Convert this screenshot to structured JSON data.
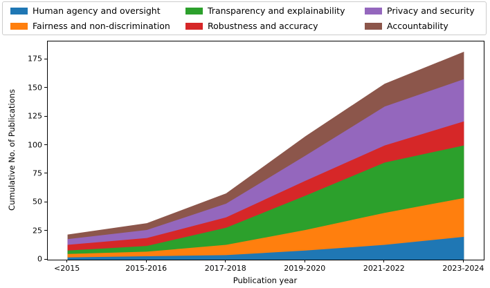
{
  "chart_data": {
    "type": "area",
    "stacked": true,
    "title": "",
    "xlabel": "Publication year",
    "ylabel": "Cumulative No. of Publications",
    "categories": [
      "<2015",
      "2015-2016",
      "2017-2018",
      "2019-2020",
      "2021-2022",
      "2023-2024"
    ],
    "series": [
      {
        "name": "Human agency and oversight",
        "color": "#1f77b4",
        "values": [
          2,
          3,
          4,
          8,
          13,
          20
        ]
      },
      {
        "name": "Fairness and non-discrimination",
        "color": "#ff7f0e",
        "values": [
          3,
          4,
          9,
          18,
          28,
          34
        ]
      },
      {
        "name": "Transparency and explainability",
        "color": "#2ca02c",
        "values": [
          3,
          5,
          15,
          30,
          44,
          46
        ]
      },
      {
        "name": "Robustness and accuracy",
        "color": "#d62728",
        "values": [
          5,
          7,
          9,
          13,
          15,
          21
        ]
      },
      {
        "name": "Privacy and security",
        "color": "#9467bd",
        "values": [
          5,
          7,
          12,
          22,
          34,
          37
        ]
      },
      {
        "name": "Accountability",
        "color": "#8c564b",
        "values": [
          4,
          6,
          9,
          17,
          20,
          24
        ]
      }
    ],
    "cumulative_totals": [
      22,
      32,
      58,
      108,
      154,
      182
    ],
    "yticks": [
      0,
      25,
      50,
      75,
      100,
      125,
      150,
      175
    ],
    "ylim": [
      0,
      191
    ],
    "grid": false,
    "legend_position": "top",
    "legend_columns": 3
  },
  "legend": {
    "items": [
      {
        "label": "Human agency and oversight",
        "color": "#1f77b4"
      },
      {
        "label": "Fairness and non-discrimination",
        "color": "#ff7f0e"
      },
      {
        "label": "Transparency and explainability",
        "color": "#2ca02c"
      },
      {
        "label": "Robustness and accuracy",
        "color": "#d62728"
      },
      {
        "label": "Privacy and security",
        "color": "#9467bd"
      },
      {
        "label": "Accountability",
        "color": "#8c564b"
      }
    ]
  },
  "axes": {
    "xlabel": "Publication year",
    "ylabel": "Cumulative No. of Publications"
  }
}
